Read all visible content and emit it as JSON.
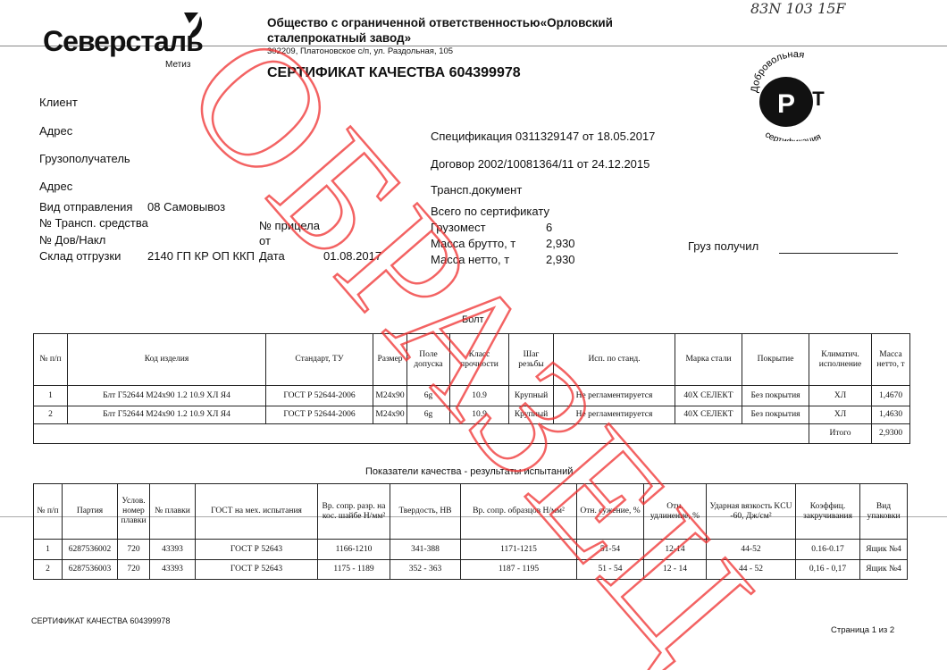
{
  "logo": {
    "brand": "Северсталь",
    "sub": "Метиз"
  },
  "company": {
    "name_line1": "Общество с ограниченной ответственностью«Орловский",
    "name_line2": "сталепрокатный завод»",
    "address": "302209, Платоновское с/п, ул. Раздольная, 105"
  },
  "handwritten": "83N 103 15F",
  "title": "СЕРТИФИКАТ КАЧЕСТВА 604399978",
  "seal": {
    "top": "Добровольная",
    "center": "РСТ",
    "bottom": "сертификация"
  },
  "left_fields": {
    "client": "Клиент",
    "address": "Адрес",
    "consignee": "Грузополучатель",
    "address2": "Адрес",
    "ship_type_label": "Вид отправления",
    "ship_type_value": "08 Самовывоз",
    "vehicle_label": "№ Трансп. средства",
    "trailer_label": "№ прицела",
    "dov_label": "№ Дов/Накл",
    "from_label": "от",
    "warehouse_label": "Склад отгрузки",
    "warehouse_value": "2140 ГП КР ОП ККП",
    "date_label": "Дата",
    "date_value": "01.08.2017"
  },
  "right_fields": {
    "spec": "Спецификация  0311329147 от 18.05.2017",
    "contract": "Договор  2002/10081364/11 от 24.12.2015",
    "transport_doc": "Трансп.документ",
    "total_label": "Всего по сертификату",
    "places_label": "Грузомест",
    "places_value": "6",
    "gross_label": "Масса брутто, т",
    "gross_value": "2,930",
    "net_label": "Масса нетто, т",
    "net_value": "2,930",
    "received_label": "Груз получил"
  },
  "product_heading": "Болт",
  "table1": {
    "headers": [
      "№ п/п",
      "Код изделия",
      "Стандарт, ТУ",
      "Размер",
      "Поле допуска",
      "Класс прочности",
      "Шаг резьбы",
      "Исп. по станд.",
      "Марка стали",
      "Покрытие",
      "Климатич. исполнение",
      "Масса нетто, т"
    ],
    "rows": [
      [
        "1",
        "Блт Г52644 М24х90 1.2 10.9 ХЛ Я4",
        "ГОСТ Р 52644-2006",
        "М24х90",
        "6g",
        "10.9",
        "Крупный",
        "Не регламентируется",
        "40Х СЕЛЕКТ",
        "Без покрытия",
        "ХЛ",
        "1,4670"
      ],
      [
        "2",
        "Блт Г52644 М24х90 1.2 10.9 ХЛ Я4",
        "ГОСТ Р 52644-2006",
        "М24х90",
        "6g",
        "10.9",
        "Крупный",
        "Не регламентируется",
        "40Х СЕЛЕКТ",
        "Без покрытия",
        "ХЛ",
        "1,4630"
      ]
    ],
    "total_label": "Итого",
    "total_value": "2,9300"
  },
  "quality_heading": "Показатели качества - результаты испытаний",
  "table2": {
    "headers": [
      "№ п/п",
      "Партия",
      "Услов. номер плавки",
      "№ плавки",
      "ГОСТ на мех. испытания",
      "Вр. сопр. разр. на кос. шайбе Н/мм²",
      "Твердость, НВ",
      "Вр. сопр. образцов Н/мм²",
      "Отн. сужение, %",
      "Отн. удлинение, %",
      "Ударная вязкость KCU -60, Дж/см²",
      "Коэффиц. закручивания",
      "Вид упаковки"
    ],
    "rows": [
      [
        "1",
        "6287536002",
        "720",
        "43393",
        "ГОСТ Р 52643",
        "1166-1210",
        "341-388",
        "1171-1215",
        "51-54",
        "12-14",
        "44-52",
        "0.16-0.17",
        "Ящик №4"
      ],
      [
        "2",
        "6287536003",
        "720",
        "43393",
        "ГОСТ Р 52643",
        "1175 - 1189",
        "352 - 363",
        "1187 - 1195",
        "51 - 54",
        "12 - 14",
        "44 - 52",
        "0,16 - 0,17",
        "Ящик №4"
      ]
    ]
  },
  "footer": {
    "left": "СЕРТИФИКАТ КАЧЕСТВА 604399978",
    "right": "Страница 1 из 2"
  },
  "watermark": {
    "text": "ОБРАЗЕЦ",
    "color": "#f03030"
  }
}
